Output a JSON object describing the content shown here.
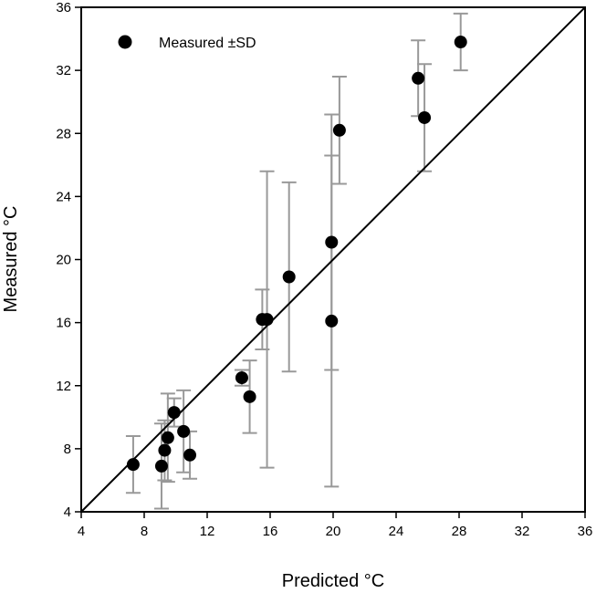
{
  "chart_data": {
    "type": "scatter",
    "title": "",
    "xlabel": "Predicted °C",
    "ylabel": "Measured °C",
    "xlim": [
      4,
      36
    ],
    "ylim": [
      4,
      36
    ],
    "xticks": [
      4,
      8,
      12,
      16,
      20,
      24,
      28,
      32,
      36
    ],
    "yticks": [
      4,
      8,
      12,
      16,
      20,
      24,
      28,
      32,
      36
    ],
    "grid": false,
    "legend_position": "top-left",
    "series": [
      {
        "name": "Measured ±SD",
        "marker_color": "#000000",
        "errorbar_color": "#999999",
        "points": [
          {
            "x": 7.3,
            "y": 7.0,
            "sd": 1.8
          },
          {
            "x": 9.1,
            "y": 6.9,
            "sd": 2.7
          },
          {
            "x": 9.3,
            "y": 7.9,
            "sd": 1.9
          },
          {
            "x": 9.5,
            "y": 8.7,
            "sd": 2.8
          },
          {
            "x": 9.9,
            "y": 10.3,
            "sd": 0.9
          },
          {
            "x": 10.5,
            "y": 9.1,
            "sd": 2.6
          },
          {
            "x": 10.9,
            "y": 7.6,
            "sd": 1.5
          },
          {
            "x": 14.2,
            "y": 12.5,
            "sd": 0.5
          },
          {
            "x": 14.7,
            "y": 11.3,
            "sd": 2.3
          },
          {
            "x": 15.5,
            "y": 16.2,
            "sd": 1.9
          },
          {
            "x": 15.8,
            "y": 16.2,
            "sd": 9.4
          },
          {
            "x": 17.2,
            "y": 18.9,
            "sd": 6.0
          },
          {
            "x": 19.9,
            "y": 21.1,
            "sd": 8.1
          },
          {
            "x": 19.9,
            "y": 16.1,
            "sd": 10.5
          },
          {
            "x": 20.4,
            "y": 28.2,
            "sd": 3.4
          },
          {
            "x": 25.4,
            "y": 31.5,
            "sd": 2.4
          },
          {
            "x": 25.8,
            "y": 29.0,
            "sd": 3.4
          },
          {
            "x": 28.1,
            "y": 33.8,
            "sd": 1.8
          }
        ]
      }
    ],
    "reference_line": {
      "type": "identity",
      "from": [
        4,
        4
      ],
      "to": [
        36,
        36
      ],
      "color": "#000000"
    }
  }
}
